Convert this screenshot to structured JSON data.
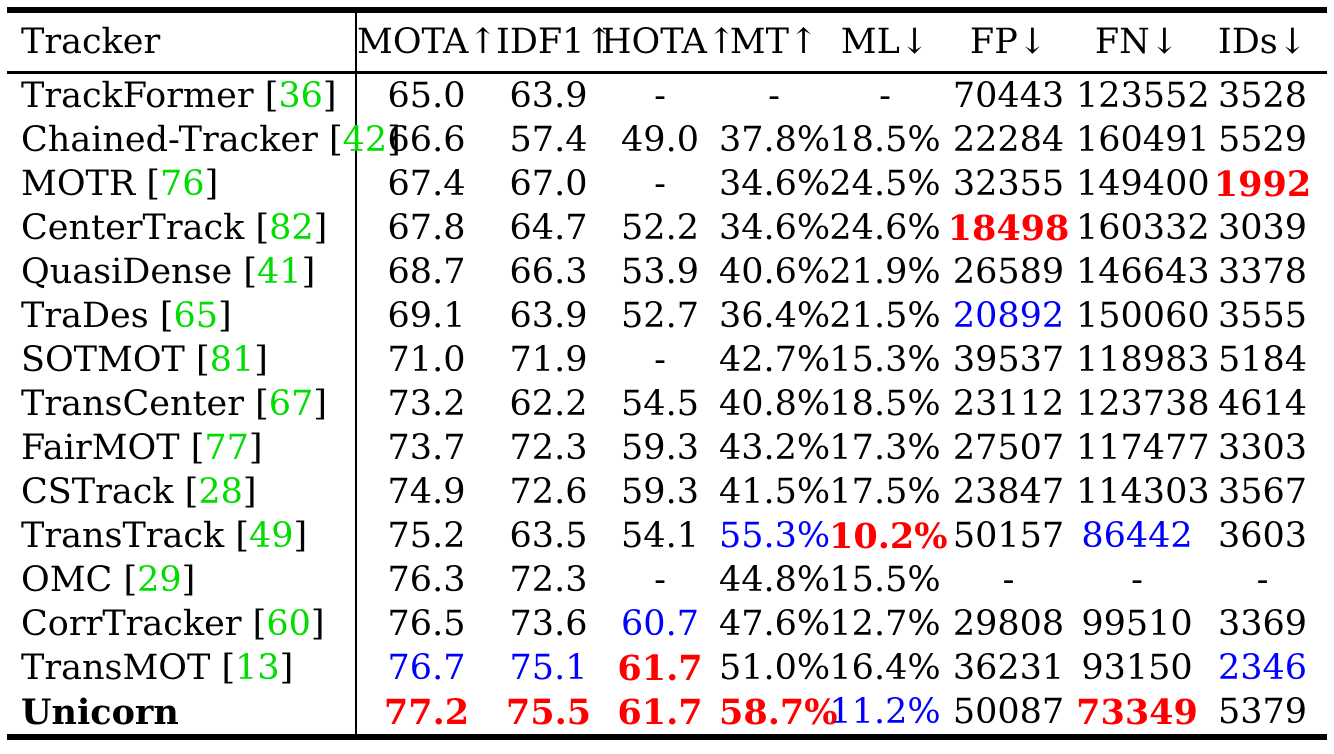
{
  "page": {
    "background": "#ffffff"
  },
  "colors": {
    "text": "#000000",
    "citation": "#00dd00",
    "best": "#ff0000",
    "second_best": "#0000ff",
    "rule": "#000000"
  },
  "table": {
    "citation_brackets": {
      "open": "[",
      "close": "]"
    },
    "header": {
      "tracker": {
        "text": "Tracker"
      },
      "metric_columns": [
        {
          "key": "mota",
          "metric": "MOTA",
          "direction": "up",
          "text": "MOTA↑"
        },
        {
          "key": "idf1",
          "metric": "IDF1",
          "direction": "up",
          "text": "IDF1↑"
        },
        {
          "key": "hota",
          "metric": "HOTA",
          "direction": "up",
          "text": "HOTA↑"
        },
        {
          "key": "mt",
          "metric": "MT",
          "direction": "up",
          "text": "MT↑"
        },
        {
          "key": "ml",
          "metric": "ML",
          "direction": "down",
          "text": "ML↓"
        },
        {
          "key": "fp",
          "metric": "FP",
          "direction": "down",
          "text": "FP↓"
        },
        {
          "key": "fn",
          "metric": "FN",
          "direction": "down",
          "text": "FN↓"
        },
        {
          "key": "ids",
          "metric": "IDs",
          "direction": "down",
          "text": "IDs↓"
        }
      ]
    },
    "rows": [
      {
        "name": "TrackFormer",
        "cite": "36",
        "bold": false,
        "values": [
          {
            "t": "65.0"
          },
          {
            "t": "63.9"
          },
          {
            "t": "-"
          },
          {
            "t": "-"
          },
          {
            "t": "-"
          },
          {
            "t": "70443"
          },
          {
            "t": "123552"
          },
          {
            "t": "3528"
          }
        ]
      },
      {
        "name": "Chained-Tracker",
        "cite": "42",
        "bold": false,
        "values": [
          {
            "t": "66.6"
          },
          {
            "t": "57.4"
          },
          {
            "t": "49.0"
          },
          {
            "t": "37.8%"
          },
          {
            "t": "18.5%"
          },
          {
            "t": "22284"
          },
          {
            "t": "160491"
          },
          {
            "t": "5529"
          }
        ]
      },
      {
        "name": "MOTR",
        "cite": "76",
        "bold": false,
        "values": [
          {
            "t": "67.4"
          },
          {
            "t": "67.0"
          },
          {
            "t": "-"
          },
          {
            "t": "34.6%"
          },
          {
            "t": "24.5%"
          },
          {
            "t": "32355"
          },
          {
            "t": "149400"
          },
          {
            "t": "1992",
            "s": "best"
          }
        ]
      },
      {
        "name": "CenterTrack",
        "cite": "82",
        "bold": false,
        "values": [
          {
            "t": "67.8"
          },
          {
            "t": "64.7"
          },
          {
            "t": "52.2"
          },
          {
            "t": "34.6%"
          },
          {
            "t": "24.6%"
          },
          {
            "t": "18498",
            "s": "best"
          },
          {
            "t": "160332"
          },
          {
            "t": "3039"
          }
        ]
      },
      {
        "name": "QuasiDense",
        "cite": "41",
        "bold": false,
        "values": [
          {
            "t": "68.7"
          },
          {
            "t": "66.3"
          },
          {
            "t": "53.9"
          },
          {
            "t": "40.6%"
          },
          {
            "t": "21.9%"
          },
          {
            "t": "26589"
          },
          {
            "t": "146643"
          },
          {
            "t": "3378"
          }
        ]
      },
      {
        "name": "TraDes",
        "cite": "65",
        "bold": false,
        "values": [
          {
            "t": "69.1"
          },
          {
            "t": "63.9"
          },
          {
            "t": "52.7"
          },
          {
            "t": "36.4%"
          },
          {
            "t": "21.5%"
          },
          {
            "t": "20892",
            "s": "second"
          },
          {
            "t": "150060"
          },
          {
            "t": "3555"
          }
        ]
      },
      {
        "name": "SOTMOT",
        "cite": "81",
        "bold": false,
        "values": [
          {
            "t": "71.0"
          },
          {
            "t": "71.9"
          },
          {
            "t": "-"
          },
          {
            "t": "42.7%"
          },
          {
            "t": "15.3%"
          },
          {
            "t": "39537"
          },
          {
            "t": "118983"
          },
          {
            "t": "5184"
          }
        ]
      },
      {
        "name": "TransCenter",
        "cite": "67",
        "bold": false,
        "values": [
          {
            "t": "73.2"
          },
          {
            "t": "62.2"
          },
          {
            "t": "54.5"
          },
          {
            "t": "40.8%"
          },
          {
            "t": "18.5%"
          },
          {
            "t": "23112"
          },
          {
            "t": "123738"
          },
          {
            "t": "4614"
          }
        ]
      },
      {
        "name": "FairMOT",
        "cite": "77",
        "bold": false,
        "values": [
          {
            "t": "73.7"
          },
          {
            "t": "72.3"
          },
          {
            "t": "59.3"
          },
          {
            "t": "43.2%"
          },
          {
            "t": "17.3%"
          },
          {
            "t": "27507"
          },
          {
            "t": "117477"
          },
          {
            "t": "3303"
          }
        ]
      },
      {
        "name": "CSTrack",
        "cite": "28",
        "bold": false,
        "values": [
          {
            "t": "74.9"
          },
          {
            "t": "72.6"
          },
          {
            "t": "59.3"
          },
          {
            "t": "41.5%"
          },
          {
            "t": "17.5%"
          },
          {
            "t": "23847"
          },
          {
            "t": "114303"
          },
          {
            "t": "3567"
          }
        ]
      },
      {
        "name": "TransTrack",
        "cite": "49",
        "bold": false,
        "values": [
          {
            "t": "75.2"
          },
          {
            "t": "63.5"
          },
          {
            "t": "54.1"
          },
          {
            "t": "55.3%",
            "s": "second"
          },
          {
            "t": "10.2%",
            "s": "best"
          },
          {
            "t": "50157"
          },
          {
            "t": "86442",
            "s": "second"
          },
          {
            "t": "3603"
          }
        ]
      },
      {
        "name": "OMC",
        "cite": "29",
        "bold": false,
        "values": [
          {
            "t": "76.3"
          },
          {
            "t": "72.3"
          },
          {
            "t": "-"
          },
          {
            "t": "44.8%"
          },
          {
            "t": "15.5%"
          },
          {
            "t": "-"
          },
          {
            "t": "-"
          },
          {
            "t": "-"
          }
        ]
      },
      {
        "name": "CorrTracker",
        "cite": "60",
        "bold": false,
        "values": [
          {
            "t": "76.5"
          },
          {
            "t": "73.6"
          },
          {
            "t": "60.7",
            "s": "second"
          },
          {
            "t": "47.6%"
          },
          {
            "t": "12.7%"
          },
          {
            "t": "29808"
          },
          {
            "t": "99510"
          },
          {
            "t": "3369"
          }
        ]
      },
      {
        "name": "TransMOT",
        "cite": "13",
        "bold": false,
        "values": [
          {
            "t": "76.7",
            "s": "second"
          },
          {
            "t": "75.1",
            "s": "second"
          },
          {
            "t": "61.7",
            "s": "best"
          },
          {
            "t": "51.0%"
          },
          {
            "t": "16.4%"
          },
          {
            "t": "36231"
          },
          {
            "t": "93150"
          },
          {
            "t": "2346",
            "s": "second"
          }
        ]
      },
      {
        "name": "Unicorn",
        "cite": null,
        "bold": true,
        "values": [
          {
            "t": "77.2",
            "s": "best"
          },
          {
            "t": "75.5",
            "s": "best"
          },
          {
            "t": "61.7",
            "s": "best"
          },
          {
            "t": "58.7%",
            "s": "best"
          },
          {
            "t": "11.2%",
            "s": "second"
          },
          {
            "t": "50087"
          },
          {
            "t": "73349",
            "s": "best"
          },
          {
            "t": "5379"
          }
        ]
      }
    ]
  }
}
